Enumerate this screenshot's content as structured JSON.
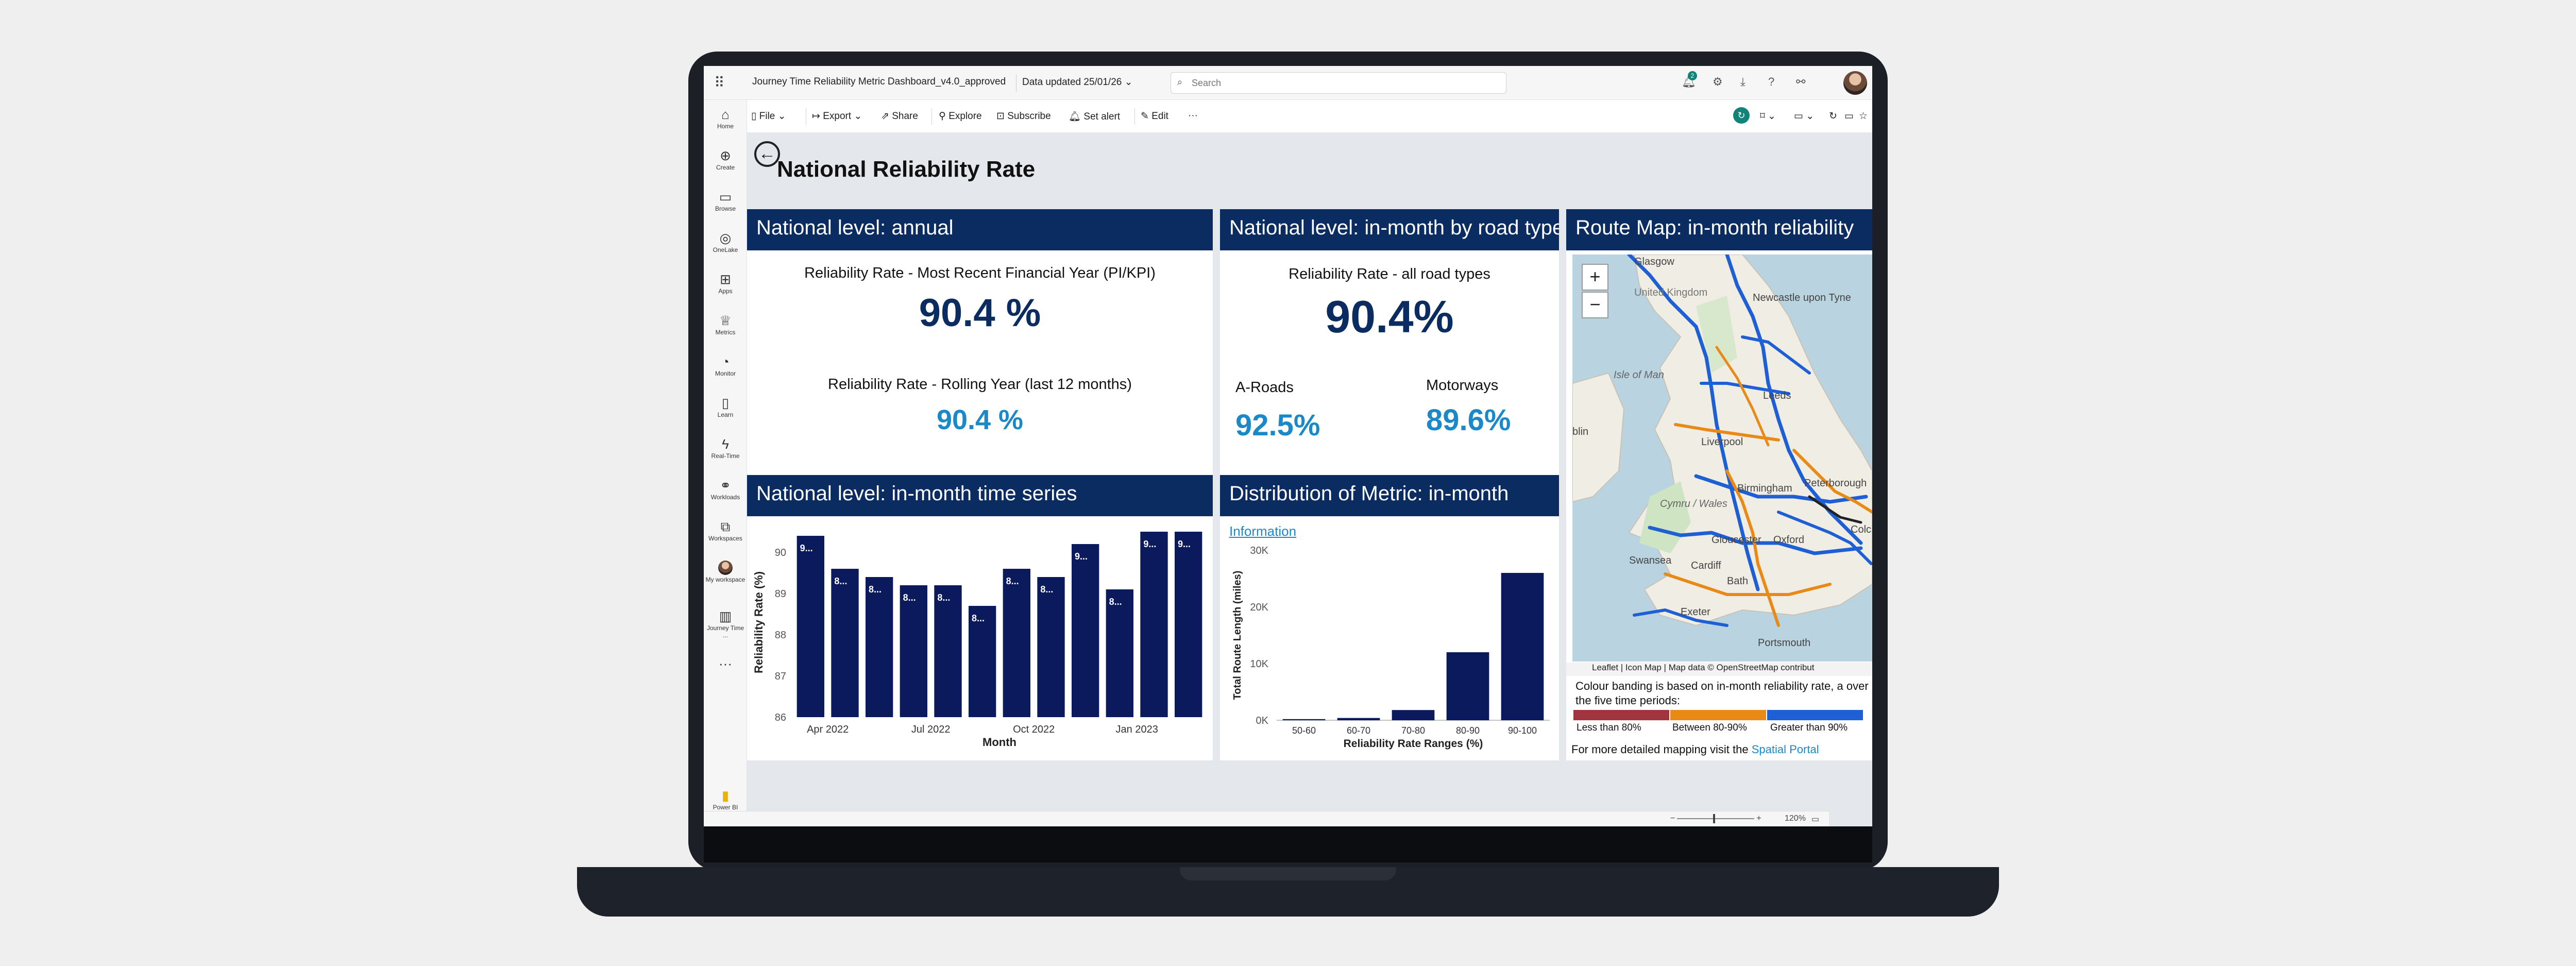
{
  "topbar": {
    "report_title": "Journey Time Reliability Metric Dashboard_v4.0_approved",
    "data_updated": "Data updated 25/01/26",
    "search_placeholder": "Search",
    "notification_count": "2"
  },
  "leftnav": [
    {
      "label": "Home",
      "icon": "home-icon"
    },
    {
      "label": "Create",
      "icon": "create-icon"
    },
    {
      "label": "Browse",
      "icon": "browse-icon"
    },
    {
      "label": "OneLake",
      "icon": "onelake-icon"
    },
    {
      "label": "Apps",
      "icon": "apps-icon"
    },
    {
      "label": "Metrics",
      "icon": "metrics-icon"
    },
    {
      "label": "Monitor",
      "icon": "monitor-icon"
    },
    {
      "label": "Learn",
      "icon": "learn-icon"
    },
    {
      "label": "Real-Time",
      "icon": "real-time-icon"
    },
    {
      "label": "Workloads",
      "icon": "workloads-icon"
    },
    {
      "label": "Workspaces",
      "icon": "workspaces-icon"
    },
    {
      "label": "My workspace",
      "icon": "my-workspace-icon"
    },
    {
      "label": "Journey Time ...",
      "icon": "report-icon"
    }
  ],
  "powerbi_label": "Power BI",
  "toolbar": {
    "file": "File",
    "export": "Export",
    "share": "Share",
    "explore": "Explore",
    "subscribe": "Subscribe",
    "set_alert": "Set alert",
    "edit": "Edit",
    "more": "···"
  },
  "page": {
    "title": "National Reliability Rate"
  },
  "annual": {
    "header": "National level: annual",
    "fy_label": "Reliability Rate - Most Recent Financial Year (PI/KPI)",
    "fy_value": "90.4 %",
    "rolling_label": "Reliability Rate - Rolling Year (last 12 months)",
    "rolling_value": "90.4  %"
  },
  "roadtype": {
    "header": "National level: in-month by road type",
    "all_label": "Reliability Rate - all road types",
    "all_value": "90.4%",
    "a_roads_label": "A-Roads",
    "a_roads_value": "92.5%",
    "motorways_label": "Motorways",
    "motorways_value": "89.6%"
  },
  "timeseries": {
    "header": "National level: in-month time series"
  },
  "distribution": {
    "header": "Distribution of Metric: in-month",
    "info_link": "Information"
  },
  "map": {
    "header": "Route Map: in-month reliability",
    "zoom_in": "+",
    "zoom_out": "−",
    "attribution": "Leaflet | Icon Map | Map data © OpenStreetMap contribut",
    "legend_text": "Colour banding is based on in-month reliability rate, a over the five time periods:",
    "bands": [
      {
        "label": "Less than 80%",
        "color": "#a0343f"
      },
      {
        "label": "Between 80-90%",
        "color": "#e98a17"
      },
      {
        "label": "Greater than 90%",
        "color": "#1f5fd6"
      }
    ],
    "portal_text": "For more detailed mapping visit the",
    "portal_link": "Spatial Portal",
    "place_labels": [
      "Glasgow",
      "United Kingdom",
      "Newcastle upon Tyne",
      "Isle of Man",
      "Leeds",
      "Liverpool",
      "blin",
      "Birmingham",
      "Peterborough",
      "Cymru / Wales",
      "Swansea",
      "Cardiff",
      "Gloucester",
      "Oxford",
      "Bath",
      "Portsmouth",
      "Exeter",
      "Colc"
    ]
  },
  "zoom_level": "120%",
  "chart_data": [
    {
      "type": "bar",
      "categories": [
        "Apr 2022",
        "May 2022",
        "Jun 2022",
        "Jul 2022",
        "Aug 2022",
        "Sep 2022",
        "Oct 2022",
        "Nov 2022",
        "Dec 2022",
        "Jan 2023",
        "Feb 2023",
        "Mar 2023"
      ],
      "values": [
        90.4,
        89.6,
        89.4,
        89.2,
        89.2,
        88.7,
        89.6,
        89.4,
        90.2,
        89.1,
        90.5,
        90.5
      ],
      "bar_labels": [
        "9...",
        "8...",
        "8...",
        "8...",
        "8...",
        "8...",
        "8...",
        "8...",
        "9...",
        "8...",
        "9...",
        "9..."
      ],
      "xticks": [
        "Apr 2022",
        "Jul 2022",
        "Oct 2022",
        "Jan 2023"
      ],
      "yticks": [
        86,
        87,
        88,
        89,
        90
      ],
      "ylim": [
        86,
        90.6
      ],
      "xlabel": "Month",
      "ylabel": "Reliability Rate (%)",
      "color": "#0a1a5c"
    },
    {
      "type": "bar",
      "categories": [
        "50-60",
        "60-70",
        "70-80",
        "80-90",
        "90-100"
      ],
      "values": [
        200,
        400,
        1800,
        12000,
        26000
      ],
      "yticks": [
        "0K",
        "10K",
        "20K",
        "30K"
      ],
      "ylim": [
        0,
        30000
      ],
      "xlabel": "Reliability Rate Ranges (%)",
      "ylabel": "Total Route Length (miles)",
      "color": "#0a1a5c"
    }
  ]
}
